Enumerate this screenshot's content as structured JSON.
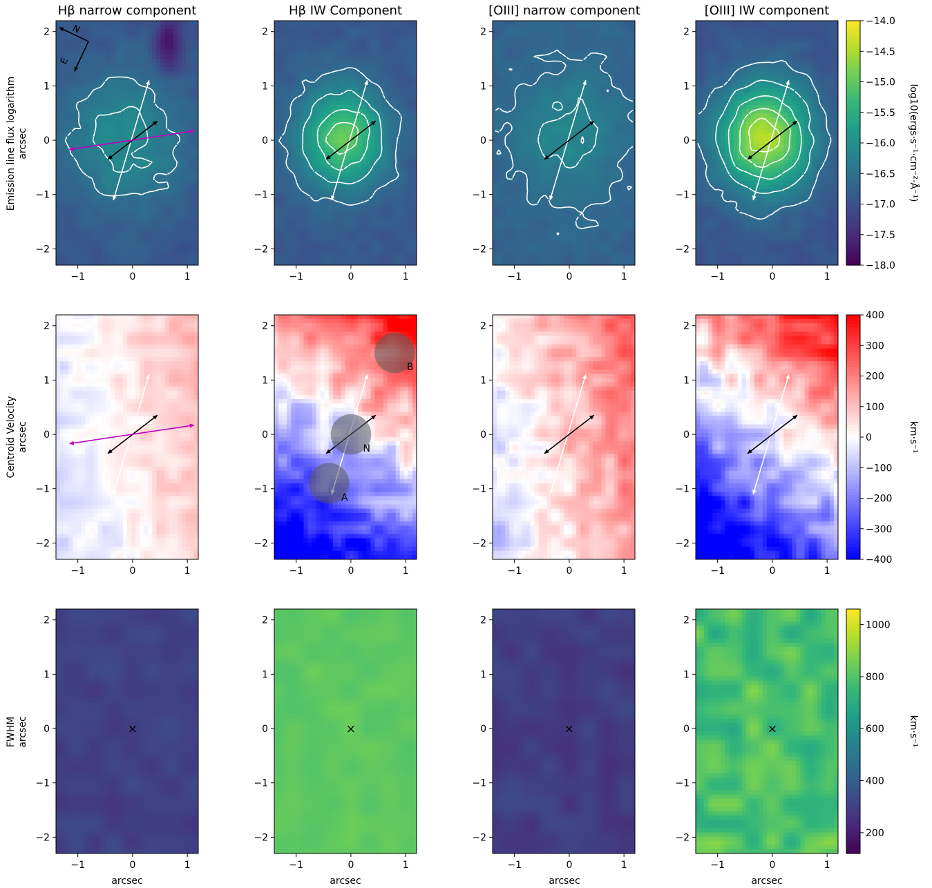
{
  "figure": {
    "column_titles": [
      "Hβ narrow component",
      "Hβ IW Component",
      "[OIII] narrow component",
      "[OIII] IW component"
    ],
    "row_labels": [
      [
        "Emission line flux logarithm",
        "arcsec"
      ],
      [
        "Centroid Velocity",
        "arcsec"
      ],
      [
        "FWHM",
        "arcsec"
      ]
    ],
    "x_axis_label": "arcsec",
    "compass": {
      "north": "N",
      "east": "E"
    }
  },
  "colors": {
    "magenta_arrow": "#c000c0",
    "white_arrow": "#ffffff",
    "black_arrow": "#000000",
    "contour": "#ffffff"
  },
  "chart_data": [
    {
      "type": "heatmap",
      "panel": "flux",
      "colormap": "viridis",
      "xlim": [
        -1.4,
        1.2
      ],
      "ylim": [
        -2.3,
        2.2
      ],
      "xticks": [
        -1,
        0,
        1
      ],
      "yticks": [
        -2,
        -1,
        0,
        1,
        2
      ],
      "colorbar": {
        "label": "log10(ergs·s⁻¹·cm⁻²·Å⁻¹)",
        "range": [
          -18.0,
          -14.0
        ],
        "ticks": [
          -18.0,
          -17.5,
          -17.0,
          -16.5,
          -16.0,
          -15.5,
          -15.0,
          -14.5,
          -14.0
        ],
        "tick_labels": [
          "−18.0",
          "−17.5",
          "−17.0",
          "−16.5",
          "−16.0",
          "−15.5",
          "−15.0",
          "−14.5",
          "−14.0"
        ]
      },
      "maps": [
        {
          "title": "Hβ narrow component",
          "peak": -16.05,
          "base": -16.95,
          "sigma": [
            0.8,
            0.9
          ],
          "center": [
            -0.15,
            0.0
          ],
          "contour_levels": [
            -16.5,
            -16.2
          ],
          "dark_spot": [
            0.65,
            1.75
          ]
        },
        {
          "title": "Hβ IW Component",
          "peak": -15.0,
          "base": -16.9,
          "sigma": [
            0.55,
            0.65
          ],
          "center": [
            -0.15,
            0.05
          ],
          "contour_levels": [
            -16.6,
            -16.1,
            -15.6,
            -15.2
          ]
        },
        {
          "title": "[OIII] narrow component",
          "peak": -16.1,
          "base": -16.75,
          "sigma": [
            0.65,
            0.8
          ],
          "center": [
            0.0,
            0.1
          ],
          "contour_levels": [
            -16.6,
            -16.25
          ]
        },
        {
          "title": "[OIII] IW component",
          "peak": -14.45,
          "base": -16.95,
          "sigma": [
            0.6,
            0.7
          ],
          "center": [
            -0.15,
            0.05
          ],
          "contour_levels": [
            -16.6,
            -16.1,
            -15.6,
            -15.1,
            -14.7
          ]
        }
      ],
      "arrows": {
        "white": {
          "from": [
            -0.35,
            -1.1
          ],
          "to": [
            0.3,
            1.1
          ]
        },
        "black": {
          "from": [
            -0.45,
            -0.35
          ],
          "to": [
            0.45,
            0.35
          ]
        },
        "magenta": {
          "from": [
            -1.15,
            -0.17
          ],
          "to": [
            1.12,
            0.17
          ]
        }
      }
    },
    {
      "type": "heatmap",
      "panel": "centroid_velocity",
      "colormap": "bwr",
      "xlim": [
        -1.4,
        1.2
      ],
      "ylim": [
        -2.3,
        2.2
      ],
      "xticks": [
        -1,
        0,
        1
      ],
      "yticks": [
        -2,
        -1,
        0,
        1,
        2
      ],
      "colorbar": {
        "label": "km·s⁻¹",
        "range": [
          -400,
          400
        ],
        "ticks": [
          -400,
          -300,
          -200,
          -100,
          0,
          100,
          200,
          300,
          400
        ],
        "tick_labels": [
          "−400",
          "−300",
          "−200",
          "−100",
          "0",
          "100",
          "200",
          "300",
          "400"
        ]
      },
      "maps": [
        {
          "title": "Hβ narrow component",
          "gradient": [
            55,
            10
          ],
          "offset": 30,
          "max_abs": 180
        },
        {
          "title": "Hβ IW Component",
          "gradient": [
            90,
            155
          ],
          "offset": -40,
          "max_abs": 400
        },
        {
          "title": "[OIII] narrow component",
          "gradient": [
            95,
            25
          ],
          "offset": 90,
          "max_abs": 300
        },
        {
          "title": "[OIII] IW component",
          "gradient": [
            110,
            150
          ],
          "offset": -40,
          "max_abs": 400
        }
      ],
      "regions": [
        {
          "label": "N",
          "center": [
            0.0,
            0.0
          ],
          "radius": 0.37
        },
        {
          "label": "A",
          "center": [
            -0.4,
            -0.9
          ],
          "radius": 0.37
        },
        {
          "label": "B",
          "center": [
            0.8,
            1.5
          ],
          "radius": 0.37
        }
      ]
    },
    {
      "type": "heatmap",
      "panel": "fwhm",
      "colormap": "viridis",
      "xlim": [
        -1.4,
        1.2
      ],
      "ylim": [
        -2.3,
        2.2
      ],
      "xticks": [
        -1,
        0,
        1
      ],
      "yticks": [
        -2,
        -1,
        0,
        1,
        2
      ],
      "colorbar": {
        "label": "km·s⁻¹",
        "range": [
          120,
          1060
        ],
        "ticks": [
          200,
          400,
          600,
          800,
          1000
        ],
        "tick_labels": [
          "200",
          "400",
          "600",
          "800",
          "1000"
        ]
      },
      "maps": [
        {
          "title": "Hβ narrow component",
          "base": 300,
          "var": 35,
          "marker_color": "#ffffff"
        },
        {
          "title": "Hβ IW Component",
          "base": 820,
          "var": 25,
          "marker_color": "#000000"
        },
        {
          "title": "[OIII] narrow component",
          "base": 290,
          "var": 40,
          "marker_color": "#ffffff"
        },
        {
          "title": "[OIII] IW component",
          "base": 780,
          "var": 110,
          "marker_color": "#000000"
        }
      ],
      "marker": {
        "symbol": "×",
        "position": [
          0,
          0
        ]
      }
    }
  ]
}
